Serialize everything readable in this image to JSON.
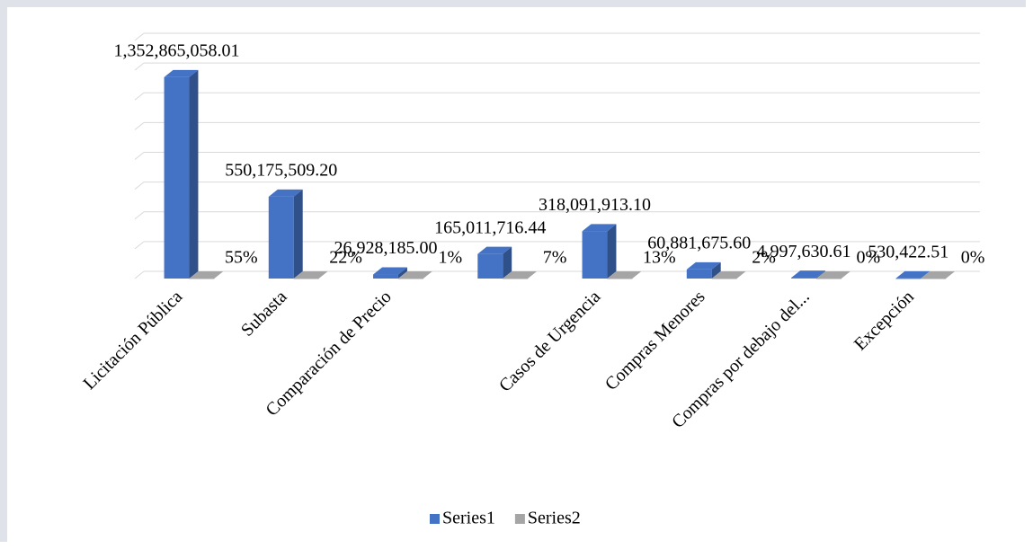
{
  "chart_data": {
    "type": "bar3d",
    "categories": [
      "Licitación Pública",
      "Subasta",
      "Comparación de Precio",
      null,
      "Casos de Urgencia",
      "Compras Menores",
      "Compras por debajo del...",
      "Excepción"
    ],
    "series": [
      {
        "name": "Series1",
        "color": "#4472c4",
        "values": [
          1352865058.01,
          550175509.2,
          26928185.0,
          165011716.44,
          318091913.1,
          60881675.6,
          4997630.61,
          530422.51
        ],
        "value_labels": [
          "1,352,865,058.01",
          "550,175,509.20",
          "26,928,185.00",
          "165,011,716.44",
          "318,091,913.10",
          "60,881,675.60",
          "4,997,630.61",
          "530,422.51"
        ]
      },
      {
        "name": "Series2",
        "color": "#a5a5a5",
        "values": [
          0.55,
          0.22,
          0.01,
          0.07,
          0.13,
          0.02,
          0,
          0
        ],
        "value_labels": [
          "55%",
          "22%",
          "1%",
          "7%",
          "13%",
          "2%",
          "0%",
          "0%"
        ]
      }
    ],
    "ylim": [
      0,
      1600000000
    ],
    "yticks": [
      0,
      200000000,
      400000000,
      600000000,
      800000000,
      1000000000,
      1200000000,
      1400000000,
      1600000000
    ],
    "grid": true,
    "legend": "bottom"
  }
}
